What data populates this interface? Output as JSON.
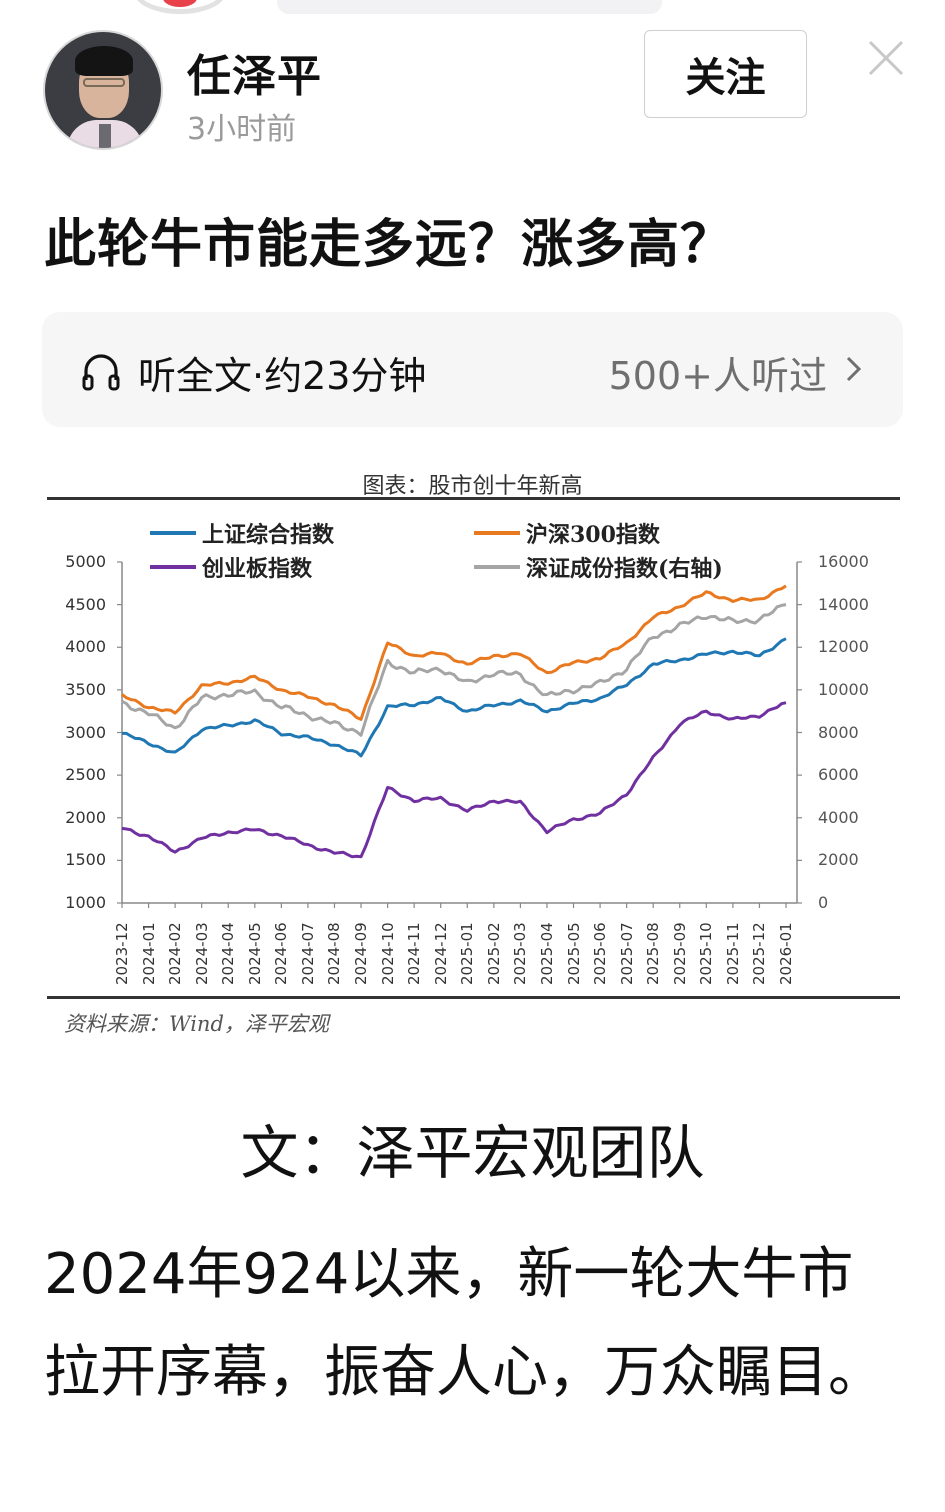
{
  "author": {
    "name": "任泽平",
    "time": "3小时前",
    "follow_label": "关注",
    "avatar_alt": "author-avatar-photo"
  },
  "post": {
    "title": "此轮牛市能走多远？涨多高？",
    "listen": {
      "label": "听全文·约23分钟",
      "count": "500+人听过",
      "icon": "headphones-icon",
      "chevron": "chevron-right-icon"
    },
    "byline": "文：泽平宏观团队",
    "paragraph": "2024年924以来，新一轮大牛市拉开序幕，振奋人心，万众瞩目。"
  },
  "colors": {
    "sse": "#1f77b4",
    "csi300": "#e8791f",
    "chinext": "#7030a0",
    "szse": "#a5a5a5",
    "text": "#111111",
    "muted": "#9a9a9a"
  },
  "chart_data": {
    "type": "line",
    "title": "图表：股市创十年新高",
    "source": "资料来源：Wind，泽平宏观",
    "xlabel": "",
    "ylabel_left": "",
    "ylabel_right": "",
    "legend": [
      "上证综合指数",
      "沪深300指数",
      "创业板指数",
      "深证成份指数(右轴)"
    ],
    "legend_position": "top",
    "grid": false,
    "ylim_left": [
      1000,
      5000
    ],
    "yticks_left": [
      5000,
      4500,
      4000,
      3500,
      3000,
      2500,
      2000,
      1500,
      1000
    ],
    "ylim_right": [
      0,
      16000
    ],
    "yticks_right": [
      16000,
      14000,
      12000,
      10000,
      8000,
      6000,
      4000,
      2000,
      0
    ],
    "categories": [
      "2023-12",
      "2024-01",
      "2024-02",
      "2024-03",
      "2024-04",
      "2024-05",
      "2024-06",
      "2024-07",
      "2024-08",
      "2024-09",
      "2024-10",
      "2024-11",
      "2024-12",
      "2025-01",
      "2025-02",
      "2025-03",
      "2025-04",
      "2025-05",
      "2025-06",
      "2025-07",
      "2025-08",
      "2025-09",
      "2025-10",
      "2025-11",
      "2025-12",
      "2026-01"
    ],
    "series": [
      {
        "name": "上证综合指数",
        "axis": "left",
        "color": "#1f77b4",
        "values": [
          2990,
          2880,
          2750,
          3040,
          3080,
          3140,
          2990,
          2940,
          2860,
          2730,
          3300,
          3330,
          3400,
          3250,
          3320,
          3370,
          3250,
          3340,
          3400,
          3560,
          3800,
          3850,
          3920,
          3950,
          3900,
          4100
        ]
      },
      {
        "name": "沪深300指数",
        "axis": "left",
        "color": "#e8791f",
        "values": [
          3430,
          3300,
          3230,
          3550,
          3580,
          3650,
          3500,
          3420,
          3320,
          3160,
          4050,
          3900,
          3930,
          3800,
          3900,
          3920,
          3700,
          3820,
          3870,
          4050,
          4350,
          4480,
          4640,
          4550,
          4560,
          4720
        ]
      },
      {
        "name": "创业板指数",
        "axis": "left",
        "color": "#7030a0",
        "values": [
          1880,
          1780,
          1600,
          1760,
          1830,
          1860,
          1790,
          1680,
          1590,
          1540,
          2350,
          2200,
          2230,
          2080,
          2200,
          2180,
          1840,
          1980,
          2050,
          2280,
          2700,
          3100,
          3250,
          3150,
          3200,
          3350
        ]
      },
      {
        "name": "深证成份指数(右轴)",
        "axis": "right",
        "color": "#a5a5a5",
        "values": [
          9400,
          8900,
          8200,
          9600,
          9800,
          9900,
          9200,
          8800,
          8400,
          8000,
          11300,
          10800,
          11000,
          10300,
          10800,
          10700,
          9700,
          10000,
          10300,
          11000,
          12500,
          13000,
          13500,
          13200,
          13300,
          14000
        ]
      }
    ]
  }
}
